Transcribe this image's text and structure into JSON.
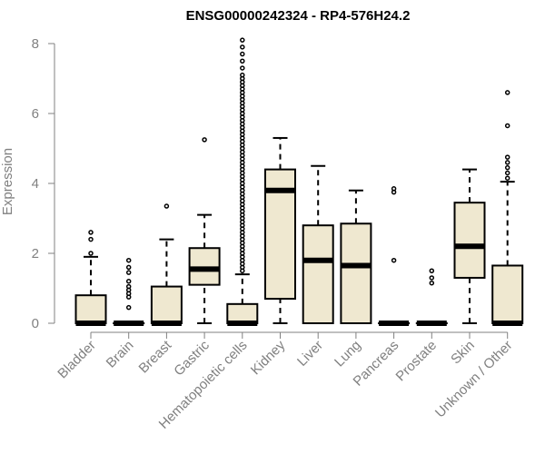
{
  "chart_data": {
    "type": "box",
    "title": "ENSG00000242324 - RP4-576H24.2",
    "xlabel": "",
    "ylabel": "Expression",
    "ylim": [
      0,
      8.2
    ],
    "yticks": [
      0,
      2,
      4,
      6,
      8
    ],
    "box_fill": "#efe8d0",
    "categories": [
      "Bladder",
      "Brain",
      "Breast",
      "Gastric",
      "Hematopoietic cells",
      "Kidney",
      "Liver",
      "Lung",
      "Pancreas",
      "Prostate",
      "Skin",
      "Unknown / Other"
    ],
    "boxes": [
      {
        "q1": 0,
        "median": 0,
        "q3": 0.8,
        "whisker_low": 0,
        "whisker_high": 1.9,
        "outliers": [
          2.0,
          2.4,
          2.6
        ]
      },
      {
        "q1": 0,
        "median": 0,
        "q3": 0,
        "whisker_low": 0,
        "whisker_high": 0,
        "outliers": [
          0.45,
          0.75,
          0.85,
          0.95,
          1.05,
          1.2,
          1.45,
          1.6,
          1.8
        ]
      },
      {
        "q1": 0,
        "median": 0,
        "q3": 1.05,
        "whisker_low": 0,
        "whisker_high": 2.4,
        "outliers": [
          3.35
        ]
      },
      {
        "q1": 1.1,
        "median": 1.55,
        "q3": 2.15,
        "whisker_low": 0,
        "whisker_high": 3.1,
        "outliers": [
          5.25
        ]
      },
      {
        "q1": 0,
        "median": 0,
        "q3": 0.55,
        "whisker_low": 0,
        "whisker_high": 1.4,
        "outliers": [
          1.5,
          1.6,
          1.7,
          1.8,
          1.9,
          2.0,
          2.1,
          2.2,
          2.3,
          2.4,
          2.5,
          2.6,
          2.7,
          2.8,
          2.9,
          3.0,
          3.1,
          3.2,
          3.3,
          3.4,
          3.5,
          3.6,
          3.7,
          3.8,
          3.9,
          4.0,
          4.1,
          4.2,
          4.3,
          4.4,
          4.5,
          4.6,
          4.7,
          4.8,
          4.9,
          5.0,
          5.1,
          5.2,
          5.3,
          5.4,
          5.5,
          5.6,
          5.7,
          5.8,
          5.9,
          6.0,
          6.1,
          6.2,
          6.3,
          6.4,
          6.5,
          6.6,
          6.7,
          6.8,
          6.9,
          7.0,
          7.1,
          7.3,
          7.5,
          7.7,
          7.9,
          8.1
        ]
      },
      {
        "q1": 0.7,
        "median": 3.8,
        "q3": 4.4,
        "whisker_low": 0,
        "whisker_high": 5.3,
        "outliers": []
      },
      {
        "q1": 0,
        "median": 1.8,
        "q3": 2.8,
        "whisker_low": 0,
        "whisker_high": 4.5,
        "outliers": []
      },
      {
        "q1": 0,
        "median": 1.65,
        "q3": 2.85,
        "whisker_low": 0,
        "whisker_high": 3.8,
        "outliers": []
      },
      {
        "q1": 0,
        "median": 0,
        "q3": 0,
        "whisker_low": 0,
        "whisker_high": 0,
        "outliers": [
          1.8,
          3.75,
          3.85
        ]
      },
      {
        "q1": 0,
        "median": 0,
        "q3": 0,
        "whisker_low": 0,
        "whisker_high": 0,
        "outliers": [
          1.15,
          1.3,
          1.5
        ]
      },
      {
        "q1": 1.3,
        "median": 2.2,
        "q3": 3.45,
        "whisker_low": 0,
        "whisker_high": 4.4,
        "outliers": []
      },
      {
        "q1": 0,
        "median": 0,
        "q3": 1.65,
        "whisker_low": 0,
        "whisker_high": 4.05,
        "outliers": [
          4.15,
          4.3,
          4.45,
          4.6,
          4.75,
          5.65,
          6.6
        ]
      }
    ]
  }
}
